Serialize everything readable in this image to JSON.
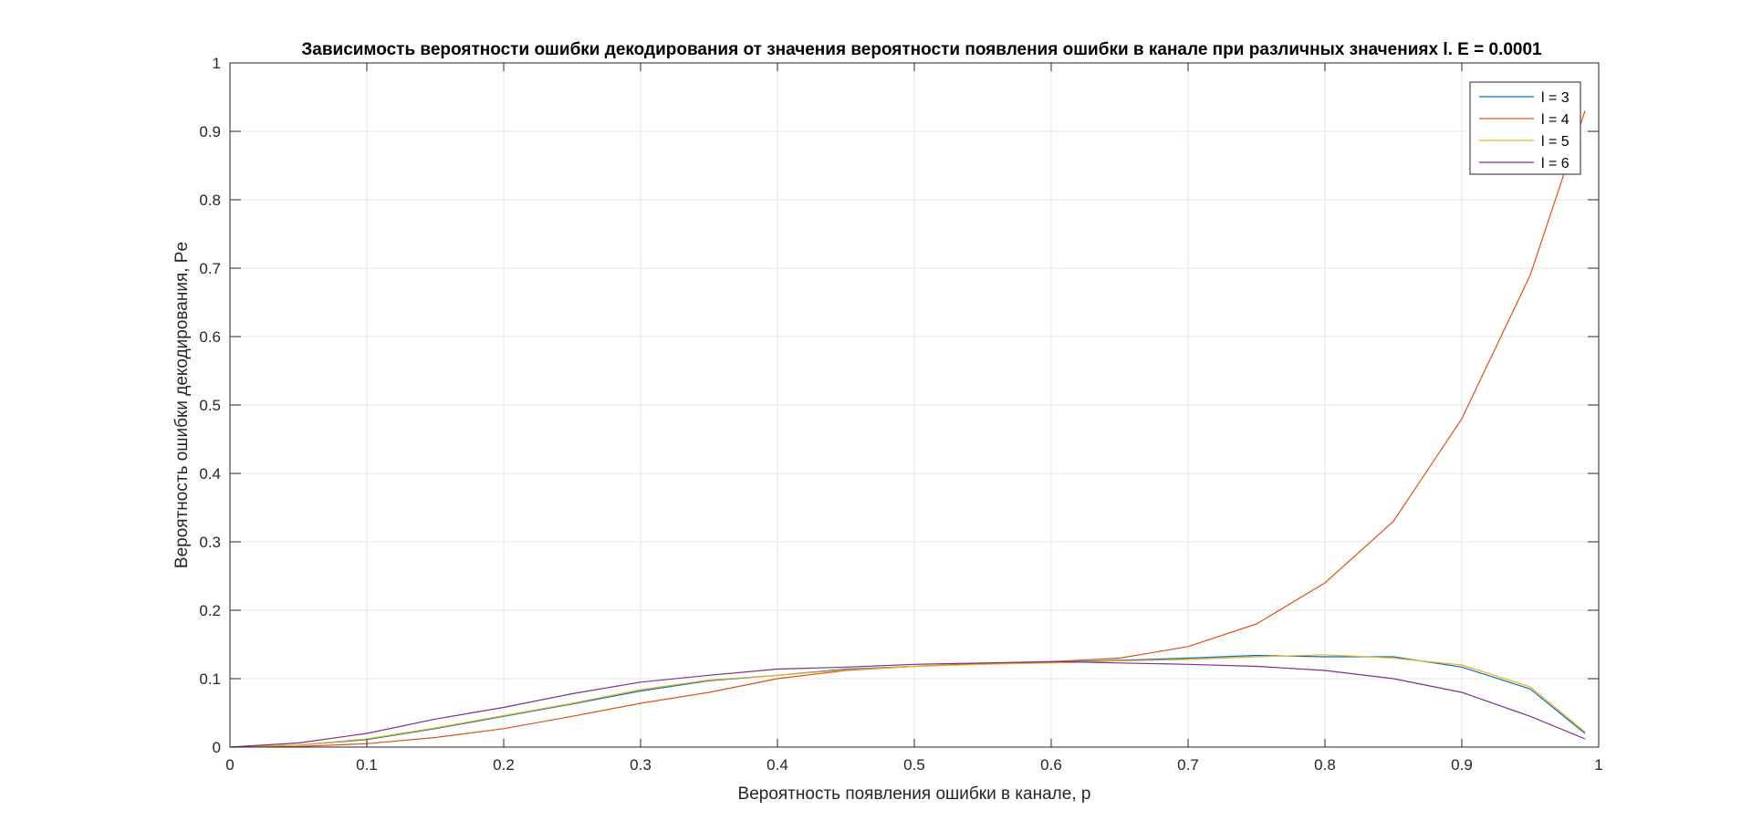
{
  "chart_data": {
    "type": "line",
    "title": "Зависимость вероятности ошибки декодирования от значения вероятности появления ошибки в канале при различных значениях l. E = 0.0001",
    "xlabel": "Вероятность появления ошибки в канале, p",
    "ylabel": "Вероятность ошибки декодирования, Pe",
    "xlim": [
      0,
      1
    ],
    "ylim": [
      0,
      1
    ],
    "xticks": [
      0,
      0.1,
      0.2,
      0.3,
      0.4,
      0.5,
      0.6,
      0.7,
      0.8,
      0.9,
      1
    ],
    "xtick_labels": [
      "0",
      "0.1",
      "0.2",
      "0.3",
      "0.4",
      "0.5",
      "0.6",
      "0.7",
      "0.8",
      "0.9",
      "1"
    ],
    "yticks": [
      0,
      0.1,
      0.2,
      0.3,
      0.4,
      0.5,
      0.6,
      0.7,
      0.8,
      0.9,
      1
    ],
    "ytick_labels": [
      "0",
      "0.1",
      "0.2",
      "0.3",
      "0.4",
      "0.5",
      "0.6",
      "0.7",
      "0.8",
      "0.9",
      "1"
    ],
    "grid": true,
    "legend_position": "top-right",
    "x": [
      0,
      0.05,
      0.1,
      0.15,
      0.2,
      0.25,
      0.3,
      0.35,
      0.4,
      0.45,
      0.5,
      0.55,
      0.6,
      0.65,
      0.7,
      0.75,
      0.8,
      0.85,
      0.9,
      0.95,
      0.99
    ],
    "series": [
      {
        "name": "l = 3",
        "color": "#0072BD",
        "values": [
          0,
          0.003,
          0.011,
          0.027,
          0.045,
          0.063,
          0.082,
          0.097,
          0.105,
          0.114,
          0.118,
          0.122,
          0.124,
          0.127,
          0.13,
          0.134,
          0.132,
          0.132,
          0.117,
          0.085,
          0.02
        ]
      },
      {
        "name": "l = 4",
        "color": "#D95319",
        "values": [
          0,
          0.001,
          0.005,
          0.014,
          0.027,
          0.045,
          0.064,
          0.08,
          0.1,
          0.112,
          0.118,
          0.122,
          0.125,
          0.13,
          0.147,
          0.18,
          0.24,
          0.33,
          0.48,
          0.69,
          0.93
        ]
      },
      {
        "name": "l = 5",
        "color": "#EDB120",
        "values": [
          0,
          0.003,
          0.012,
          0.028,
          0.046,
          0.064,
          0.084,
          0.098,
          0.105,
          0.113,
          0.118,
          0.121,
          0.123,
          0.126,
          0.128,
          0.132,
          0.135,
          0.13,
          0.12,
          0.088,
          0.022
        ]
      },
      {
        "name": "l = 6",
        "color": "#7E2F8E",
        "values": [
          0,
          0.006,
          0.02,
          0.041,
          0.058,
          0.078,
          0.095,
          0.105,
          0.114,
          0.117,
          0.121,
          0.123,
          0.125,
          0.123,
          0.121,
          0.118,
          0.112,
          0.1,
          0.08,
          0.045,
          0.012
        ]
      }
    ]
  }
}
